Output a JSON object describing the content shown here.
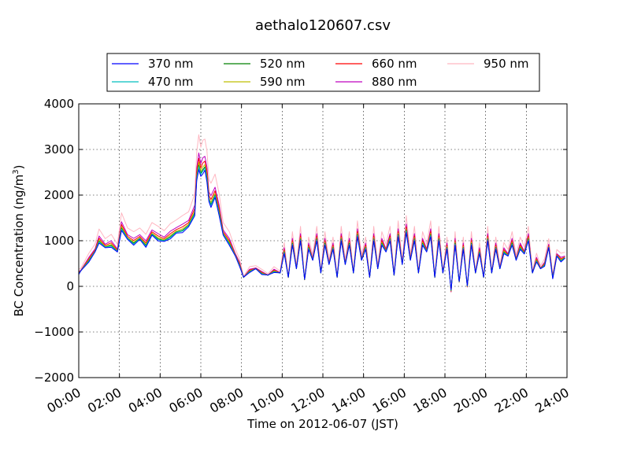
{
  "chart_data": {
    "type": "line",
    "title": "aethalo120607.csv",
    "xlabel": "Time on 2012-06-07 (JST)",
    "ylabel": "BC Concentration (ng/m",
    "ylabel_sup": "3",
    "ylabel_end": ")",
    "xlim": [
      "00:00",
      "24:00"
    ],
    "ylim": [
      -2000,
      4000
    ],
    "grid": true,
    "legend_position": "top",
    "x_ticks": [
      "00:00",
      "02:00",
      "04:00",
      "06:00",
      "08:00",
      "10:00",
      "12:00",
      "14:00",
      "16:00",
      "18:00",
      "20:00",
      "22:00",
      "24:00"
    ],
    "y_ticks": [
      "4000",
      "3000",
      "2000",
      "1000",
      "0",
      "−1000",
      "−2000"
    ],
    "series": [
      {
        "name": "370 nm",
        "color": "#0000ff",
        "scale": 0.92
      },
      {
        "name": "470 nm",
        "color": "#00bfbf",
        "scale": 0.94
      },
      {
        "name": "520 nm",
        "color": "#008000",
        "scale": 0.95
      },
      {
        "name": "590 nm",
        "color": "#bfbf00",
        "scale": 0.97
      },
      {
        "name": "660 nm",
        "color": "#ff0000",
        "scale": 1.0
      },
      {
        "name": "880 nm",
        "color": "#bf00bf",
        "scale": 1.04
      },
      {
        "name": "950 nm",
        "color": "#ffb6c1",
        "scale": 1.18
      }
    ],
    "profile": {
      "x_hours": [
        0,
        0.1,
        0.5,
        0.8,
        1.0,
        1.3,
        1.6,
        1.9,
        2.1,
        2.4,
        2.7,
        3.0,
        3.3,
        3.6,
        3.9,
        4.2,
        4.5,
        4.8,
        5.1,
        5.4,
        5.7,
        5.8,
        5.9,
        6.0,
        6.1,
        6.2,
        6.3,
        6.4,
        6.5,
        6.7,
        6.9,
        7.1,
        7.4,
        7.7,
        7.9,
        8.1,
        8.4,
        8.7,
        9.0,
        9.3,
        9.6,
        9.9,
        10.1,
        10.3,
        10.5,
        10.7,
        10.9,
        11.1,
        11.3,
        11.5,
        11.7,
        11.9,
        12.1,
        12.3,
        12.5,
        12.7,
        12.9,
        13.1,
        13.3,
        13.5,
        13.7,
        13.9,
        14.1,
        14.3,
        14.5,
        14.7,
        14.9,
        15.1,
        15.3,
        15.5,
        15.7,
        15.9,
        16.1,
        16.3,
        16.5,
        16.7,
        16.9,
        17.1,
        17.3,
        17.5,
        17.7,
        17.9,
        18.1,
        18.3,
        18.5,
        18.7,
        18.9,
        19.1,
        19.3,
        19.5,
        19.7,
        19.9,
        20.1,
        20.3,
        20.5,
        20.7,
        20.9,
        21.1,
        21.3,
        21.5,
        21.7,
        21.9,
        22.1,
        22.3,
        22.5,
        22.7,
        22.9,
        23.1,
        23.3,
        23.5,
        23.7,
        23.9
      ],
      "y_values": [
        300,
        350,
        600,
        800,
        1050,
        900,
        950,
        800,
        1350,
        1100,
        1000,
        1100,
        950,
        1200,
        1100,
        1050,
        1150,
        1250,
        1300,
        1400,
        1700,
        2500,
        2800,
        2600,
        2700,
        2750,
        2500,
        2000,
        1900,
        2100,
        1700,
        1200,
        1000,
        700,
        500,
        200,
        350,
        400,
        300,
        250,
        350,
        300,
        800,
        200,
        1000,
        400,
        1100,
        150,
        900,
        600,
        1100,
        300,
        1000,
        500,
        900,
        200,
        1100,
        500,
        1000,
        300,
        1200,
        600,
        900,
        200,
        1100,
        400,
        1000,
        800,
        1100,
        250,
        1200,
        500,
        1300,
        600,
        1100,
        300,
        1000,
        800,
        1200,
        200,
        1100,
        300,
        900,
        -100,
        1000,
        100,
        900,
        0,
        1000,
        300,
        800,
        200,
        1100,
        300,
        900,
        400,
        800,
        700,
        1000,
        600,
        900,
        750,
        1100,
        300,
        600,
        400,
        500,
        900,
        200,
        700,
        600,
        650
      ]
    }
  }
}
